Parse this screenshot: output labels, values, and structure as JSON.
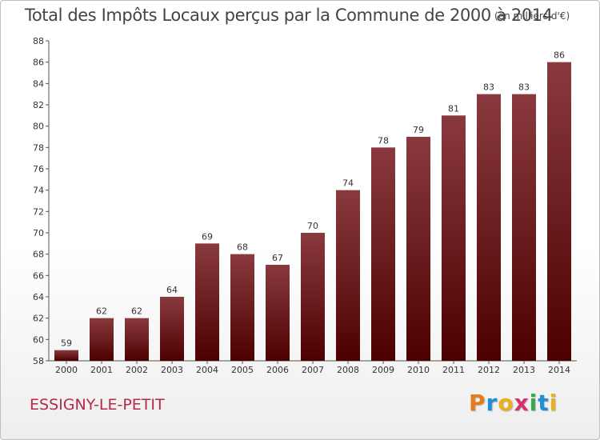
{
  "header": {
    "title": "Total des Impôts Locaux perçus par la Commune de 2000 à 2014",
    "unit": "(en milliers d'€)"
  },
  "footer": {
    "commune": "ESSIGNY-LE-PETIT",
    "brand_letters": [
      "P",
      "r",
      "o",
      "x",
      "i",
      "t",
      "i"
    ],
    "brand_colors": [
      "#e87a1e",
      "#1f8fd6",
      "#e8b21e",
      "#d62f6b",
      "#38a84a",
      "#1f8fd6",
      "#e8b21e"
    ]
  },
  "colors": {
    "bar_top": "#8a3a3e",
    "bar_bottom": "#4d0000",
    "text": "#444444",
    "commune": "#b5294a"
  },
  "chart_data": {
    "type": "bar",
    "title": "Total des Impôts Locaux perçus par la Commune de 2000 à 2014",
    "xlabel": "",
    "ylabel": "",
    "ylim": [
      58,
      88
    ],
    "yticks": [
      58,
      60,
      62,
      64,
      66,
      68,
      70,
      72,
      74,
      76,
      78,
      80,
      82,
      84,
      86,
      88
    ],
    "categories": [
      "2000",
      "2001",
      "2002",
      "2003",
      "2004",
      "2005",
      "2006",
      "2007",
      "2008",
      "2009",
      "2010",
      "2011",
      "2012",
      "2013",
      "2014"
    ],
    "values": [
      59,
      62,
      62,
      64,
      69,
      68,
      67,
      70,
      74,
      78,
      79,
      81,
      83,
      83,
      86
    ],
    "grid": false,
    "legend": "none"
  }
}
